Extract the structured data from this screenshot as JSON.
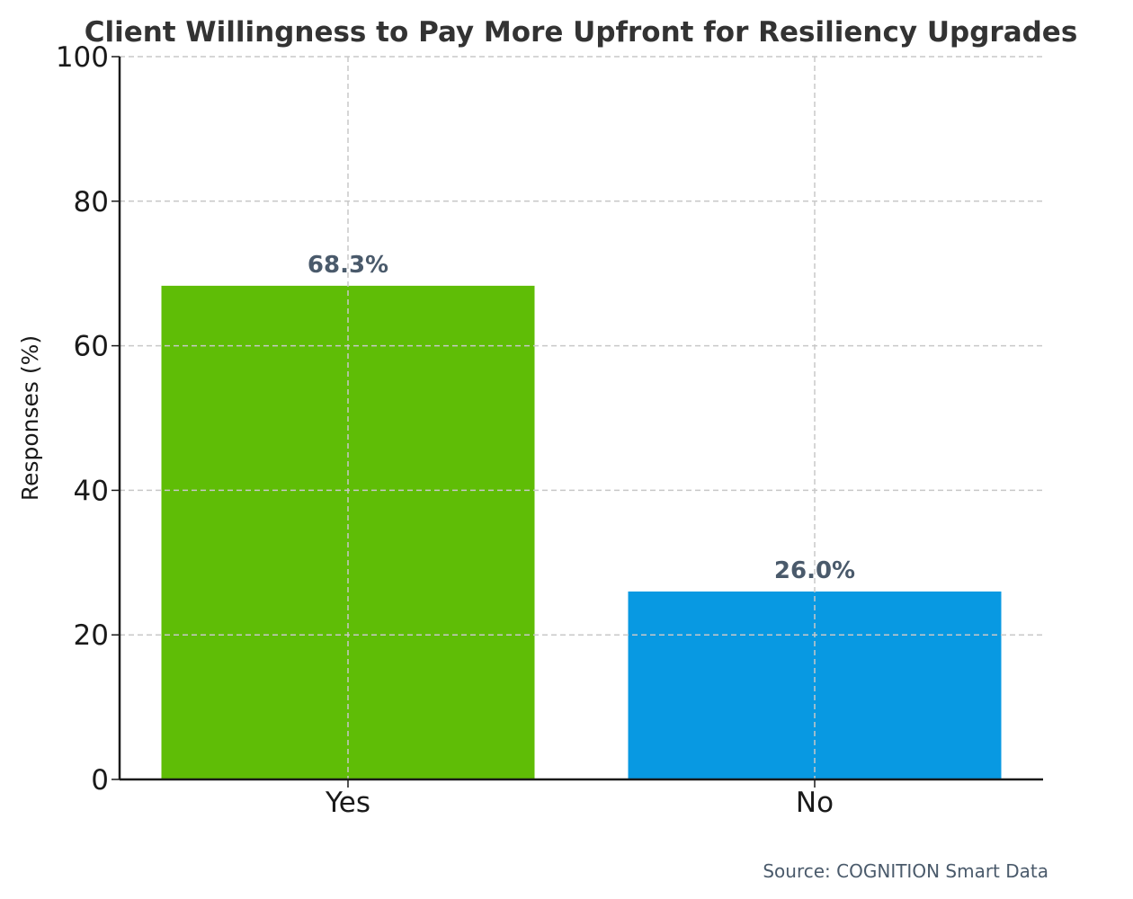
{
  "chart_data": {
    "type": "bar",
    "title": "Client Willingness to Pay More Upfront for Resiliency Upgrades",
    "xlabel": "",
    "ylabel": "Responses (%)",
    "categories": [
      "Yes",
      "No"
    ],
    "values": [
      68.3,
      26.0
    ],
    "data_labels": [
      "68.3%",
      "26.0%"
    ],
    "colors": [
      "#5fbd06",
      "#0899e2"
    ],
    "ylim": [
      0,
      100
    ],
    "yticks": [
      0,
      20,
      40,
      60,
      80,
      100
    ],
    "grid": true,
    "source": "Source: COGNITION Smart Data"
  }
}
